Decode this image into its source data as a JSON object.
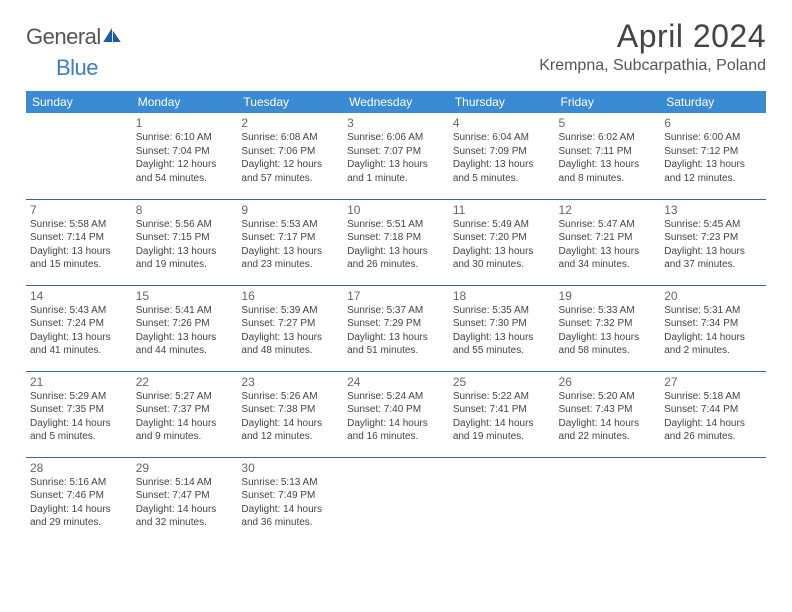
{
  "brand": {
    "word1": "General",
    "word2": "Blue",
    "logo_color": "#1e5aa8"
  },
  "title": "April 2024",
  "location": "Krempna, Subcarpathia, Poland",
  "colors": {
    "header_bg": "#3b8bd4",
    "header_text": "#ffffff",
    "rule": "#336699",
    "body_text": "#444444",
    "daynum": "#666666"
  },
  "day_names": [
    "Sunday",
    "Monday",
    "Tuesday",
    "Wednesday",
    "Thursday",
    "Friday",
    "Saturday"
  ],
  "weeks": [
    [
      null,
      {
        "n": "1",
        "sr": "6:10 AM",
        "ss": "7:04 PM",
        "dl": "12 hours and 54 minutes."
      },
      {
        "n": "2",
        "sr": "6:08 AM",
        "ss": "7:06 PM",
        "dl": "12 hours and 57 minutes."
      },
      {
        "n": "3",
        "sr": "6:06 AM",
        "ss": "7:07 PM",
        "dl": "13 hours and 1 minute."
      },
      {
        "n": "4",
        "sr": "6:04 AM",
        "ss": "7:09 PM",
        "dl": "13 hours and 5 minutes."
      },
      {
        "n": "5",
        "sr": "6:02 AM",
        "ss": "7:11 PM",
        "dl": "13 hours and 8 minutes."
      },
      {
        "n": "6",
        "sr": "6:00 AM",
        "ss": "7:12 PM",
        "dl": "13 hours and 12 minutes."
      }
    ],
    [
      {
        "n": "7",
        "sr": "5:58 AM",
        "ss": "7:14 PM",
        "dl": "13 hours and 15 minutes."
      },
      {
        "n": "8",
        "sr": "5:56 AM",
        "ss": "7:15 PM",
        "dl": "13 hours and 19 minutes."
      },
      {
        "n": "9",
        "sr": "5:53 AM",
        "ss": "7:17 PM",
        "dl": "13 hours and 23 minutes."
      },
      {
        "n": "10",
        "sr": "5:51 AM",
        "ss": "7:18 PM",
        "dl": "13 hours and 26 minutes."
      },
      {
        "n": "11",
        "sr": "5:49 AM",
        "ss": "7:20 PM",
        "dl": "13 hours and 30 minutes."
      },
      {
        "n": "12",
        "sr": "5:47 AM",
        "ss": "7:21 PM",
        "dl": "13 hours and 34 minutes."
      },
      {
        "n": "13",
        "sr": "5:45 AM",
        "ss": "7:23 PM",
        "dl": "13 hours and 37 minutes."
      }
    ],
    [
      {
        "n": "14",
        "sr": "5:43 AM",
        "ss": "7:24 PM",
        "dl": "13 hours and 41 minutes."
      },
      {
        "n": "15",
        "sr": "5:41 AM",
        "ss": "7:26 PM",
        "dl": "13 hours and 44 minutes."
      },
      {
        "n": "16",
        "sr": "5:39 AM",
        "ss": "7:27 PM",
        "dl": "13 hours and 48 minutes."
      },
      {
        "n": "17",
        "sr": "5:37 AM",
        "ss": "7:29 PM",
        "dl": "13 hours and 51 minutes."
      },
      {
        "n": "18",
        "sr": "5:35 AM",
        "ss": "7:30 PM",
        "dl": "13 hours and 55 minutes."
      },
      {
        "n": "19",
        "sr": "5:33 AM",
        "ss": "7:32 PM",
        "dl": "13 hours and 58 minutes."
      },
      {
        "n": "20",
        "sr": "5:31 AM",
        "ss": "7:34 PM",
        "dl": "14 hours and 2 minutes."
      }
    ],
    [
      {
        "n": "21",
        "sr": "5:29 AM",
        "ss": "7:35 PM",
        "dl": "14 hours and 5 minutes."
      },
      {
        "n": "22",
        "sr": "5:27 AM",
        "ss": "7:37 PM",
        "dl": "14 hours and 9 minutes."
      },
      {
        "n": "23",
        "sr": "5:26 AM",
        "ss": "7:38 PM",
        "dl": "14 hours and 12 minutes."
      },
      {
        "n": "24",
        "sr": "5:24 AM",
        "ss": "7:40 PM",
        "dl": "14 hours and 16 minutes."
      },
      {
        "n": "25",
        "sr": "5:22 AM",
        "ss": "7:41 PM",
        "dl": "14 hours and 19 minutes."
      },
      {
        "n": "26",
        "sr": "5:20 AM",
        "ss": "7:43 PM",
        "dl": "14 hours and 22 minutes."
      },
      {
        "n": "27",
        "sr": "5:18 AM",
        "ss": "7:44 PM",
        "dl": "14 hours and 26 minutes."
      }
    ],
    [
      {
        "n": "28",
        "sr": "5:16 AM",
        "ss": "7:46 PM",
        "dl": "14 hours and 29 minutes."
      },
      {
        "n": "29",
        "sr": "5:14 AM",
        "ss": "7:47 PM",
        "dl": "14 hours and 32 minutes."
      },
      {
        "n": "30",
        "sr": "5:13 AM",
        "ss": "7:49 PM",
        "dl": "14 hours and 36 minutes."
      },
      null,
      null,
      null,
      null
    ]
  ],
  "labels": {
    "sunrise": "Sunrise:",
    "sunset": "Sunset:",
    "daylight": "Daylight:"
  }
}
